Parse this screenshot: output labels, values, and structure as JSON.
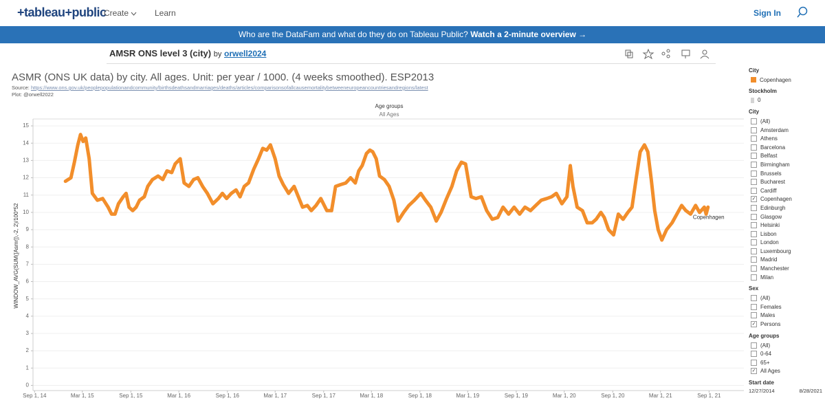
{
  "nav": {
    "logo": "+tableau+public",
    "links": [
      "Create",
      "Learn"
    ],
    "sign_in": "Sign In"
  },
  "banner": {
    "text": "Who are the DataFam and what do they do on Tableau Public?",
    "link": "Watch a 2-minute overview →"
  },
  "viz": {
    "title": "AMSR ONS level 3 (city)",
    "by": "by",
    "author": "orwell2024"
  },
  "chart_data": {
    "type": "line",
    "title": "ASMR (ONS UK data) by city. All ages. Unit: per year / 1000. (4 weeks smoothed). ESP2013",
    "source_label": "Source:",
    "source_url": "https://www.ons.gov.uk/peoplepopulationandcommunity/birthsdeathsandmarriages/deaths/articles/comparisonsofallcausemortalitybetweeneuropeancountriesandregions/latest",
    "credit": "Plot: @orwell2022",
    "header_title": "Age groups",
    "header_value": "All Ages",
    "y_label": "WINDOW_AVG(SUM([Asmr]),-2, 2)/100*52",
    "x": [
      "2014-12-27",
      "2015-01-17",
      "2015-01-30",
      "2015-02-12",
      "2015-02-22",
      "2015-03-04",
      "2015-03-14",
      "2015-03-27",
      "2015-04-08",
      "2015-04-27",
      "2015-05-17",
      "2015-06-07",
      "2015-06-20",
      "2015-07-03",
      "2015-07-16",
      "2015-08-03",
      "2015-08-14",
      "2015-08-25",
      "2015-09-08",
      "2015-09-21",
      "2015-10-04",
      "2015-10-22",
      "2015-11-04",
      "2015-11-22",
      "2015-12-13",
      "2015-12-31",
      "2016-01-16",
      "2016-02-03",
      "2016-02-16",
      "2016-03-06",
      "2016-03-21",
      "2016-04-08",
      "2016-04-26",
      "2016-05-12",
      "2016-05-30",
      "2016-06-17",
      "2016-07-08",
      "2016-07-29",
      "2016-08-13",
      "2016-08-29",
      "2016-09-16",
      "2016-10-04",
      "2016-10-19",
      "2016-11-04",
      "2016-11-20",
      "2016-12-10",
      "2016-12-28",
      "2017-01-13",
      "2017-01-28",
      "2017-02-11",
      "2017-03-01",
      "2017-03-16",
      "2017-04-01",
      "2017-04-21",
      "2017-05-12",
      "2017-05-28",
      "2017-06-13",
      "2017-07-01",
      "2017-07-16",
      "2017-08-03",
      "2017-08-21",
      "2017-09-13",
      "2017-10-01",
      "2017-10-16",
      "2017-11-03",
      "2017-11-24",
      "2017-12-12",
      "2017-12-30",
      "2018-01-12",
      "2018-01-25",
      "2018-02-10",
      "2018-02-23",
      "2018-03-06",
      "2018-03-19",
      "2018-04-01",
      "2018-04-19",
      "2018-05-07",
      "2018-05-25",
      "2018-06-10",
      "2018-07-01",
      "2018-07-21",
      "2018-08-11",
      "2018-09-04",
      "2018-09-22",
      "2018-10-12",
      "2018-11-02",
      "2018-11-20",
      "2018-12-11",
      "2018-12-31",
      "2019-01-18",
      "2019-02-05",
      "2019-02-21",
      "2019-03-14",
      "2019-04-01",
      "2019-04-22",
      "2019-05-12",
      "2019-06-02",
      "2019-06-23",
      "2019-07-13",
      "2019-08-03",
      "2019-08-24",
      "2019-09-14",
      "2019-10-04",
      "2019-10-25",
      "2019-11-14",
      "2019-12-05",
      "2019-12-26",
      "2020-01-13",
      "2020-01-31",
      "2020-02-21",
      "2020-03-11",
      "2020-03-24",
      "2020-04-03",
      "2020-04-19",
      "2020-05-09",
      "2020-05-27",
      "2020-06-15",
      "2020-06-30",
      "2020-07-18",
      "2020-07-31",
      "2020-08-16",
      "2020-09-04",
      "2020-09-22",
      "2020-10-10",
      "2020-10-28",
      "2020-11-13",
      "2020-11-28",
      "2020-12-14",
      "2020-12-30",
      "2021-01-12",
      "2021-01-25",
      "2021-02-07",
      "2021-02-20",
      "2021-03-06",
      "2021-03-24",
      "2021-04-14",
      "2021-05-02",
      "2021-05-20",
      "2021-06-05",
      "2021-06-23",
      "2021-07-12",
      "2021-07-27",
      "2021-08-14",
      "2021-08-21",
      "2021-08-28"
    ],
    "series": [
      {
        "name": "Copenhagen",
        "color": "#f28e2b",
        "values": [
          11.8,
          12.0,
          12.9,
          13.9,
          14.5,
          14.1,
          14.3,
          13.1,
          11.1,
          10.7,
          10.8,
          10.3,
          9.9,
          9.9,
          10.5,
          10.9,
          11.1,
          10.3,
          10.1,
          10.3,
          10.7,
          10.9,
          11.5,
          11.9,
          12.1,
          11.9,
          12.4,
          12.3,
          12.8,
          13.1,
          11.7,
          11.5,
          11.9,
          12.0,
          11.5,
          11.1,
          10.5,
          10.8,
          11.1,
          10.8,
          11.1,
          11.3,
          10.9,
          11.5,
          11.7,
          12.5,
          13.1,
          13.7,
          13.6,
          13.9,
          13.1,
          12.1,
          11.6,
          11.1,
          11.5,
          10.9,
          10.3,
          10.4,
          10.1,
          10.4,
          10.8,
          10.1,
          10.1,
          11.5,
          11.6,
          11.7,
          12.0,
          11.7,
          12.4,
          12.7,
          13.4,
          13.6,
          13.5,
          13.1,
          12.1,
          11.9,
          11.5,
          10.7,
          9.5,
          10.0,
          10.4,
          10.7,
          11.1,
          10.7,
          10.3,
          9.5,
          10.0,
          10.8,
          11.5,
          12.4,
          12.9,
          12.8,
          10.9,
          10.8,
          10.9,
          10.1,
          9.6,
          9.7,
          10.3,
          9.9,
          10.3,
          9.9,
          10.3,
          10.1,
          10.4,
          10.7,
          10.8,
          10.9,
          11.1,
          10.5,
          10.9,
          12.7,
          11.5,
          10.3,
          10.1,
          9.4,
          9.4,
          9.6,
          10.0,
          9.7,
          9.0,
          8.7,
          9.9,
          9.6,
          10.0,
          10.3,
          11.9,
          13.5,
          13.9,
          13.5,
          11.9,
          10.1,
          9.0,
          8.4,
          9.0,
          9.4,
          9.9,
          10.4,
          10.1,
          9.9,
          10.4,
          10.0,
          10.3,
          9.9,
          10.3
        ]
      }
    ],
    "xlim": [
      "2014-08-26",
      "2022-01-11"
    ],
    "xticks": [
      {
        "value": "2014-09-01",
        "label": "Sep 1, 14"
      },
      {
        "value": "2015-03-01",
        "label": "Mar 1, 15"
      },
      {
        "value": "2015-09-01",
        "label": "Sep 1, 15"
      },
      {
        "value": "2016-03-01",
        "label": "Mar 1, 16"
      },
      {
        "value": "2016-09-01",
        "label": "Sep 1, 16"
      },
      {
        "value": "2017-03-01",
        "label": "Mar 1, 17"
      },
      {
        "value": "2017-09-01",
        "label": "Sep 1, 17"
      },
      {
        "value": "2018-03-01",
        "label": "Mar 1, 18"
      },
      {
        "value": "2018-09-01",
        "label": "Sep 1, 18"
      },
      {
        "value": "2019-03-01",
        "label": "Mar 1, 19"
      },
      {
        "value": "2019-09-01",
        "label": "Sep 1, 19"
      },
      {
        "value": "2020-03-01",
        "label": "Mar 1, 20"
      },
      {
        "value": "2020-09-01",
        "label": "Sep 1, 20"
      },
      {
        "value": "2021-03-01",
        "label": "Mar 1, 21"
      },
      {
        "value": "2021-09-01",
        "label": "Sep 1, 21"
      }
    ],
    "ylim": [
      -0.3,
      15.4
    ],
    "yticks": [
      0,
      1,
      2,
      3,
      4,
      5,
      6,
      7,
      8,
      9,
      10,
      11,
      12,
      13,
      14,
      15
    ],
    "grid": true
  },
  "sidebar": {
    "color_legend_title": "City",
    "legend2": {
      "title": "Stockholm",
      "value": 0
    },
    "filters": [
      {
        "title": "City",
        "items": [
          {
            "label": "(All)",
            "checked": false
          },
          {
            "label": "Amsterdam",
            "checked": false
          },
          {
            "label": "Athens",
            "checked": false
          },
          {
            "label": "Barcelona",
            "checked": false
          },
          {
            "label": "Belfast",
            "checked": false
          },
          {
            "label": "Birmingham",
            "checked": false
          },
          {
            "label": "Brussels",
            "checked": false
          },
          {
            "label": "Bucharest",
            "checked": false
          },
          {
            "label": "Cardiff",
            "checked": false
          },
          {
            "label": "Copenhagen",
            "checked": true
          },
          {
            "label": "Edinburgh",
            "checked": false
          },
          {
            "label": "Glasgow",
            "checked": false
          },
          {
            "label": "Helsinki",
            "checked": false
          },
          {
            "label": "Lisbon",
            "checked": false
          },
          {
            "label": "London",
            "checked": false
          },
          {
            "label": "Luxembourg",
            "checked": false
          },
          {
            "label": "Madrid",
            "checked": false
          },
          {
            "label": "Manchester",
            "checked": false
          },
          {
            "label": "Milan",
            "checked": false
          }
        ]
      },
      {
        "title": "Sex",
        "items": [
          {
            "label": "(All)",
            "checked": false
          },
          {
            "label": "Females",
            "checked": false
          },
          {
            "label": "Males",
            "checked": false
          },
          {
            "label": "Persons",
            "checked": true
          }
        ]
      },
      {
        "title": "Age groups",
        "items": [
          {
            "label": "(All)",
            "checked": false
          },
          {
            "label": "0-64",
            "checked": false
          },
          {
            "label": "65+",
            "checked": false
          },
          {
            "label": "All Ages",
            "checked": true
          }
        ]
      }
    ],
    "start_date": {
      "title": "Start date",
      "from": "12/27/2014",
      "to": "8/28/2021"
    }
  }
}
